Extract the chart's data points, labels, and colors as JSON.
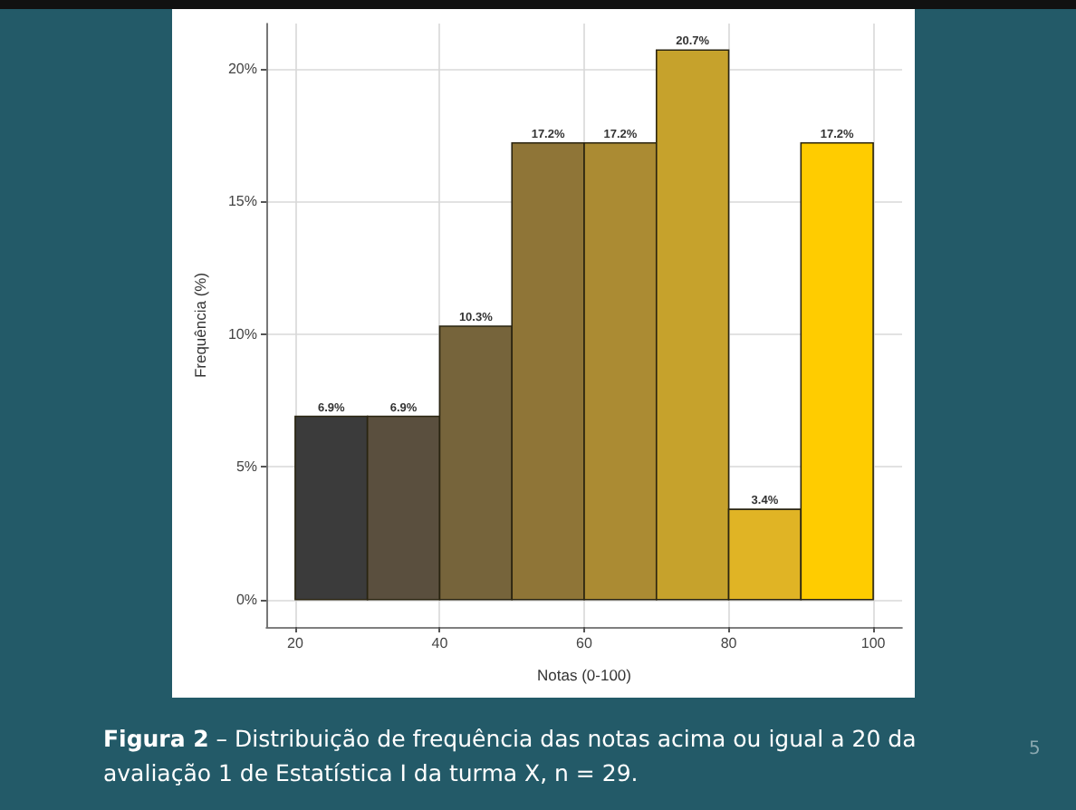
{
  "chart_data": {
    "type": "histogram",
    "xlabel": "Notas (0-100)",
    "ylabel": "Frequência (%)",
    "bins": [
      20,
      30,
      40,
      50,
      60,
      70,
      80,
      90,
      100
    ],
    "values": [
      6.9,
      6.9,
      10.3,
      17.2,
      17.2,
      20.7,
      3.4,
      17.2
    ],
    "value_labels": [
      "6.9%",
      "6.9%",
      "10.3%",
      "17.2%",
      "17.2%",
      "20.7%",
      "3.4%",
      "17.2%"
    ],
    "colors": [
      "#3b3b3b",
      "#5a4f3e",
      "#76643b",
      "#8f7537",
      "#ab8b33",
      "#c6a22c",
      "#e0b425",
      "#ffcc00"
    ],
    "xlim": [
      16,
      104
    ],
    "xticks": [
      20,
      40,
      60,
      80,
      100
    ],
    "ylim": [
      -1.035,
      21.7
    ],
    "yticks": [
      {
        "value": 0,
        "label": "0%"
      },
      {
        "value": 5,
        "label": "5%"
      },
      {
        "value": 10,
        "label": "10%"
      },
      {
        "value": 15,
        "label": "15%"
      },
      {
        "value": 20,
        "label": "20%"
      }
    ],
    "grid": true,
    "annotations": [
      "Figura 2",
      "– Distribuição de frequência das notas acima ou igual a 20 da avaliação 1 de Estatística I da turma X, n = 29.",
      "5"
    ]
  }
}
